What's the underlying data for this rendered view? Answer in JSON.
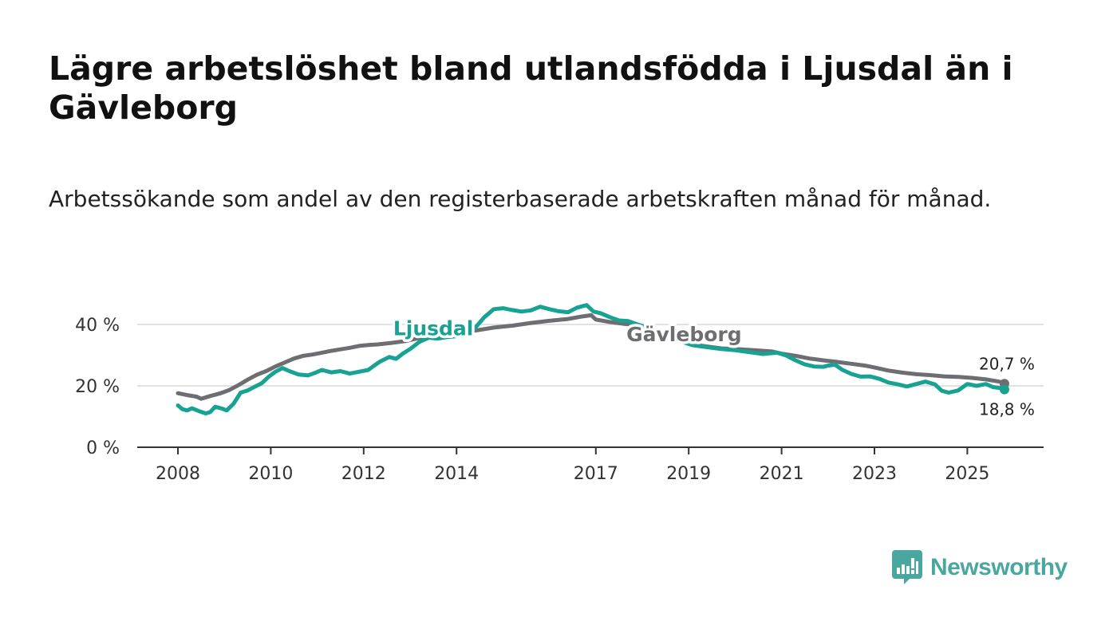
{
  "title": "Lägre arbetslöshet bland utlandsfödda i Ljusdal än i Gävleborg",
  "subtitle": "Arbetssökande som andel av den registerbaserade arbetskraften månad för månad.",
  "brand": {
    "name": "Newsworthy",
    "color": "#4aa7a0"
  },
  "chart_data": {
    "type": "line",
    "ylim": [
      0,
      50
    ],
    "xlim": [
      2008,
      2026.3
    ],
    "y_ticks": [
      {
        "value": 0,
        "label": "0 %"
      },
      {
        "value": 20,
        "label": "20 %"
      },
      {
        "value": 40,
        "label": "40 %"
      }
    ],
    "x_ticks": [
      {
        "value": 2008,
        "label": "2008"
      },
      {
        "value": 2010,
        "label": "2010"
      },
      {
        "value": 2012,
        "label": "2012"
      },
      {
        "value": 2014,
        "label": "2014"
      },
      {
        "value": 2017,
        "label": "2017"
      },
      {
        "value": 2019,
        "label": "2019"
      },
      {
        "value": 2021,
        "label": "2021"
      },
      {
        "value": 2023,
        "label": "2023"
      },
      {
        "value": 2025,
        "label": "2025"
      }
    ],
    "grid": true,
    "series": [
      {
        "name": "Gävleborg",
        "color": "#6e6d72",
        "label_at": [
          2018.9,
          34.5
        ],
        "end_label": "20,7 %",
        "points": [
          [
            2008.0,
            17.6
          ],
          [
            2008.2,
            17.0
          ],
          [
            2008.4,
            16.5
          ],
          [
            2008.5,
            15.8
          ],
          [
            2008.7,
            16.7
          ],
          [
            2008.9,
            17.5
          ],
          [
            2009.1,
            18.6
          ],
          [
            2009.3,
            20.2
          ],
          [
            2009.5,
            22.0
          ],
          [
            2009.7,
            23.6
          ],
          [
            2009.9,
            24.8
          ],
          [
            2010.1,
            26.3
          ],
          [
            2010.3,
            27.6
          ],
          [
            2010.5,
            28.9
          ],
          [
            2010.7,
            29.8
          ],
          [
            2010.9,
            30.2
          ],
          [
            2011.1,
            30.8
          ],
          [
            2011.3,
            31.4
          ],
          [
            2011.5,
            31.9
          ],
          [
            2011.7,
            32.4
          ],
          [
            2011.9,
            33.0
          ],
          [
            2012.1,
            33.3
          ],
          [
            2012.3,
            33.5
          ],
          [
            2012.6,
            34.0
          ],
          [
            2012.9,
            34.6
          ],
          [
            2013.2,
            35.6
          ],
          [
            2013.6,
            36.4
          ],
          [
            2014.0,
            37.2
          ],
          [
            2014.4,
            38.0
          ],
          [
            2014.8,
            39.0
          ],
          [
            2015.2,
            39.6
          ],
          [
            2015.6,
            40.5
          ],
          [
            2016.0,
            41.2
          ],
          [
            2016.4,
            41.8
          ],
          [
            2016.7,
            42.6
          ],
          [
            2016.9,
            43.0
          ],
          [
            2017.0,
            41.6
          ],
          [
            2017.3,
            40.8
          ],
          [
            2017.6,
            40.2
          ],
          [
            2017.8,
            40.0
          ],
          [
            2017.9,
            39.5
          ],
          [
            2018.1,
            38.6
          ],
          [
            2018.3,
            37.3
          ],
          [
            2018.5,
            36.3
          ],
          [
            2018.8,
            35.0
          ],
          [
            2019.0,
            34.0
          ],
          [
            2019.3,
            33.0
          ],
          [
            2019.7,
            32.2
          ],
          [
            2020.0,
            32.0
          ],
          [
            2020.4,
            31.6
          ],
          [
            2020.8,
            31.2
          ],
          [
            2021.0,
            30.5
          ],
          [
            2021.3,
            29.8
          ],
          [
            2021.6,
            28.9
          ],
          [
            2021.9,
            28.3
          ],
          [
            2022.2,
            27.8
          ],
          [
            2022.5,
            27.2
          ],
          [
            2022.8,
            26.6
          ],
          [
            2023.0,
            26.0
          ],
          [
            2023.3,
            25.0
          ],
          [
            2023.6,
            24.3
          ],
          [
            2023.9,
            23.8
          ],
          [
            2024.2,
            23.5
          ],
          [
            2024.5,
            23.1
          ],
          [
            2024.8,
            22.9
          ],
          [
            2025.1,
            22.6
          ],
          [
            2025.4,
            22.1
          ],
          [
            2025.6,
            21.6
          ],
          [
            2025.75,
            21.2
          ],
          [
            2025.8,
            20.7
          ]
        ]
      },
      {
        "name": "Ljusdal",
        "color": "#17a293",
        "label_at": [
          2013.5,
          36.5
        ],
        "end_label": "18,8 %",
        "points": [
          [
            2008.0,
            13.6
          ],
          [
            2008.1,
            12.4
          ],
          [
            2008.2,
            12.0
          ],
          [
            2008.3,
            12.7
          ],
          [
            2008.45,
            11.8
          ],
          [
            2008.6,
            11.0
          ],
          [
            2008.7,
            11.5
          ],
          [
            2008.8,
            13.2
          ],
          [
            2008.95,
            12.6
          ],
          [
            2009.05,
            12.0
          ],
          [
            2009.2,
            14.2
          ],
          [
            2009.35,
            17.8
          ],
          [
            2009.5,
            18.5
          ],
          [
            2009.65,
            19.7
          ],
          [
            2009.8,
            20.8
          ],
          [
            2009.95,
            22.9
          ],
          [
            2010.1,
            24.6
          ],
          [
            2010.25,
            25.8
          ],
          [
            2010.4,
            24.8
          ],
          [
            2010.6,
            23.7
          ],
          [
            2010.8,
            23.4
          ],
          [
            2010.95,
            24.2
          ],
          [
            2011.1,
            25.2
          ],
          [
            2011.3,
            24.4
          ],
          [
            2011.5,
            24.8
          ],
          [
            2011.7,
            24.0
          ],
          [
            2011.9,
            24.6
          ],
          [
            2012.1,
            25.2
          ],
          [
            2012.2,
            26.3
          ],
          [
            2012.35,
            27.9
          ],
          [
            2012.55,
            29.4
          ],
          [
            2012.7,
            28.8
          ],
          [
            2012.85,
            30.6
          ],
          [
            2013.0,
            32.0
          ],
          [
            2013.2,
            34.3
          ],
          [
            2013.4,
            35.7
          ],
          [
            2013.6,
            35.4
          ],
          [
            2013.8,
            35.9
          ],
          [
            2014.0,
            36.2
          ],
          [
            2014.2,
            36.8
          ],
          [
            2014.4,
            38.9
          ],
          [
            2014.6,
            42.4
          ],
          [
            2014.8,
            45.0
          ],
          [
            2015.0,
            45.3
          ],
          [
            2015.2,
            44.7
          ],
          [
            2015.4,
            44.2
          ],
          [
            2015.6,
            44.6
          ],
          [
            2015.8,
            45.8
          ],
          [
            2016.0,
            45.0
          ],
          [
            2016.2,
            44.3
          ],
          [
            2016.4,
            44.0
          ],
          [
            2016.6,
            45.5
          ],
          [
            2016.8,
            46.3
          ],
          [
            2016.95,
            44.2
          ],
          [
            2017.1,
            43.7
          ],
          [
            2017.3,
            42.4
          ],
          [
            2017.5,
            41.3
          ],
          [
            2017.7,
            41.1
          ],
          [
            2017.9,
            40.0
          ],
          [
            2018.1,
            39.0
          ],
          [
            2018.3,
            37.4
          ],
          [
            2018.5,
            36.0
          ],
          [
            2018.8,
            34.6
          ],
          [
            2019.1,
            33.2
          ],
          [
            2019.4,
            32.6
          ],
          [
            2019.7,
            32.0
          ],
          [
            2020.0,
            31.6
          ],
          [
            2020.3,
            31.0
          ],
          [
            2020.6,
            30.4
          ],
          [
            2020.9,
            30.8
          ],
          [
            2021.1,
            29.9
          ],
          [
            2021.3,
            28.3
          ],
          [
            2021.5,
            27.0
          ],
          [
            2021.7,
            26.3
          ],
          [
            2021.9,
            26.2
          ],
          [
            2022.0,
            26.6
          ],
          [
            2022.15,
            26.9
          ],
          [
            2022.3,
            25.3
          ],
          [
            2022.5,
            23.9
          ],
          [
            2022.7,
            23.0
          ],
          [
            2022.9,
            23.1
          ],
          [
            2023.1,
            22.3
          ],
          [
            2023.3,
            21.1
          ],
          [
            2023.5,
            20.5
          ],
          [
            2023.7,
            19.8
          ],
          [
            2023.9,
            20.6
          ],
          [
            2024.1,
            21.4
          ],
          [
            2024.3,
            20.5
          ],
          [
            2024.45,
            18.4
          ],
          [
            2024.6,
            17.8
          ],
          [
            2024.8,
            18.5
          ],
          [
            2025.0,
            20.6
          ],
          [
            2025.2,
            20.0
          ],
          [
            2025.4,
            20.6
          ],
          [
            2025.55,
            19.6
          ],
          [
            2025.7,
            19.3
          ],
          [
            2025.8,
            18.8
          ]
        ]
      }
    ]
  }
}
